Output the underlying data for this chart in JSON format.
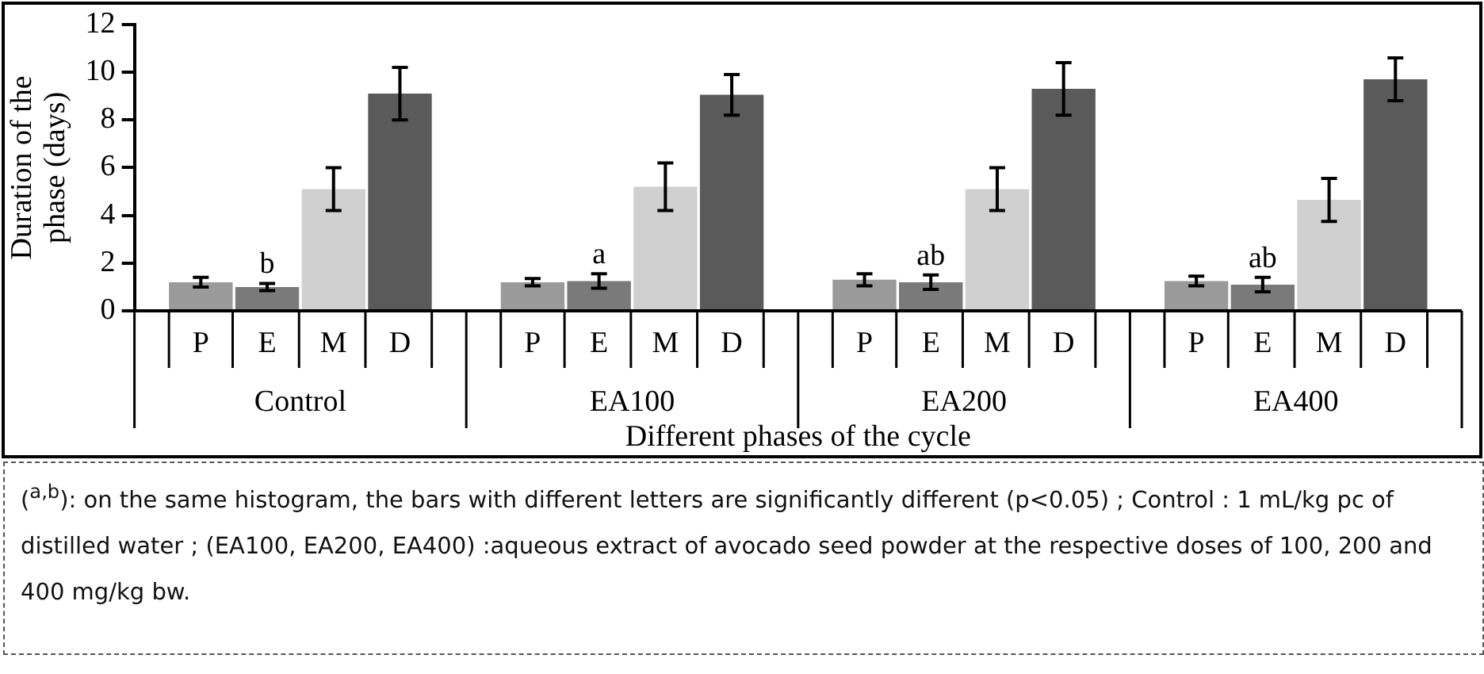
{
  "chart_data": {
    "type": "bar",
    "categories": [
      "Control",
      "EA100",
      "EA200",
      "EA400"
    ],
    "xlabel": "Different phases of the cycle",
    "ylabel": "Duration of the phase (days)",
    "ylim": [
      0,
      12
    ],
    "yticks": [
      0,
      2,
      4,
      6,
      8,
      10,
      12
    ],
    "grid": false,
    "series": [
      {
        "name": "P",
        "color": "#9a9a9a",
        "values": [
          1.2,
          1.2,
          1.3,
          1.25
        ],
        "errors": [
          0.2,
          0.15,
          0.25,
          0.2
        ]
      },
      {
        "name": "E",
        "color": "#7a7a7a",
        "values": [
          1.0,
          1.25,
          1.2,
          1.1
        ],
        "errors": [
          0.15,
          0.3,
          0.3,
          0.3
        ]
      },
      {
        "name": "M",
        "color": "#d0d0d0",
        "values": [
          5.1,
          5.2,
          5.1,
          4.65
        ],
        "errors": [
          0.9,
          1.0,
          0.9,
          0.9
        ]
      },
      {
        "name": "D",
        "color": "#5a5a5a",
        "values": [
          9.1,
          9.05,
          9.3,
          9.7
        ],
        "errors": [
          1.1,
          0.85,
          1.1,
          0.9
        ]
      }
    ],
    "annotations": [
      {
        "text": "b",
        "x": "Control",
        "y": 1.15
      },
      {
        "text": "a",
        "x": "EA100",
        "y": 1.55
      },
      {
        "text": "ab",
        "x": "EA200",
        "y": 1.5
      },
      {
        "text": "ab",
        "x": "EA400",
        "y": 1.4
      },
      "($^{a,b}$): on the same histogram, the bars with different letters are significantly different (p<0.05) ; Control : 1 mL/kg pc of distilled water ; (EA100, EA200, EA400) :aqueous extract of avocado seed powder at the respective doses of 100, 200 and 400 mg/kg bw."
    ]
  }
}
